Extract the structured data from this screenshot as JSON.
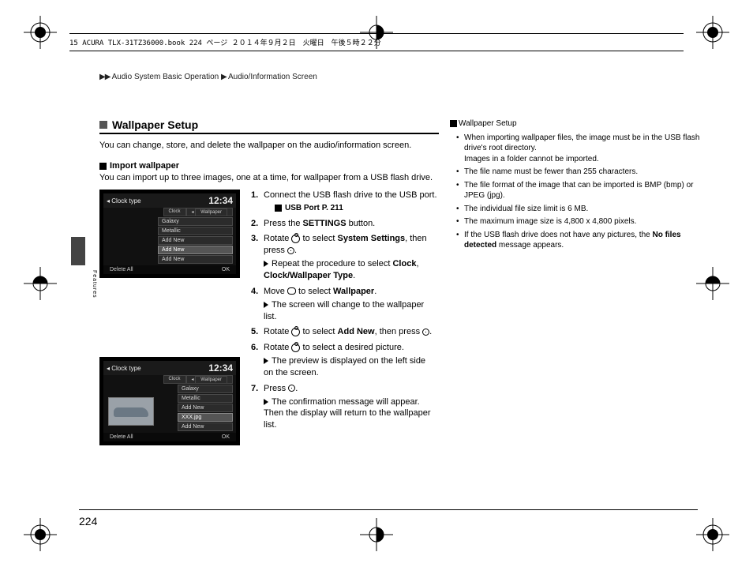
{
  "header_strip": "15 ACURA TLX-31TZ36000.book  224 ページ   ２０１４年９月２日　火曜日　午後５時２２分",
  "breadcrumb": {
    "arrow": "▶▶",
    "part1": "Audio System Basic Operation",
    "sep": "▶",
    "part2": "Audio/Information Screen"
  },
  "side_tab": "Features",
  "section_title": "Wallpaper Setup",
  "intro": "You can change, store, and delete the wallpaper on the audio/information screen.",
  "subhead": "Import wallpaper",
  "sub_intro": "You can import up to three images, one at a time, for wallpaper from a USB flash drive.",
  "thumb_common": {
    "back_label": "Clock type",
    "time": "12:34",
    "tab_clock": "Clock",
    "tab_wallpaper": "Wallpaper",
    "bottom_left": "Delete All",
    "bottom_right": "OK"
  },
  "thumb1_rows": [
    "Galaxy",
    "Metallic",
    "Add New",
    "Add New",
    "Add New"
  ],
  "thumb1_selected_index": 3,
  "thumb2_rows": [
    "Galaxy",
    "Metallic",
    "Add New",
    "XXX.jpg",
    "Add New"
  ],
  "thumb2_selected_index": 3,
  "steps": {
    "s1": "Connect the USB flash drive to the USB port.",
    "s1_xref_label": "USB Port",
    "s1_xref_page": "P. 211",
    "s2_a": "Press the ",
    "s2_b": "SETTINGS",
    "s2_c": " button.",
    "s3_a": "Rotate ",
    "s3_b": " to select ",
    "s3_c": "System Settings",
    "s3_d": ", then press ",
    "s3_e": ".",
    "s3_sub_a": "Repeat the procedure to select ",
    "s3_sub_b": "Clock",
    "s3_sub_c": ", ",
    "s3_sub_d": "Clock/Wallpaper Type",
    "s3_sub_e": ".",
    "s4_a": "Move ",
    "s4_b": " to select ",
    "s4_c": "Wallpaper",
    "s4_d": ".",
    "s4_sub": "The screen will change to the wallpaper list.",
    "s5_a": "Rotate ",
    "s5_b": " to select ",
    "s5_c": "Add New",
    "s5_d": ", then press ",
    "s5_e": ".",
    "s6_a": "Rotate ",
    "s6_b": " to select a desired picture.",
    "s6_sub": "The preview is displayed on the left side on the screen.",
    "s7_a": "Press ",
    "s7_b": ".",
    "s7_sub": "The confirmation message will appear. Then the display will return to the wallpaper list."
  },
  "notes_title": "Wallpaper Setup",
  "notes": [
    "When importing wallpaper files, the image must be in the USB flash drive's root directory.\nImages in a folder cannot be imported.",
    "The file name must be fewer than 255 characters.",
    "The file format of the image that can be imported is BMP (bmp) or JPEG (jpg).",
    "The individual file size limit is 6 MB.",
    "The maximum image size is 4,800 x 4,800 pixels."
  ],
  "notes_last_a": "If the USB flash drive does not have any pictures, the ",
  "notes_last_b": "No files detected",
  "notes_last_c": " message appears.",
  "page_number": "224"
}
